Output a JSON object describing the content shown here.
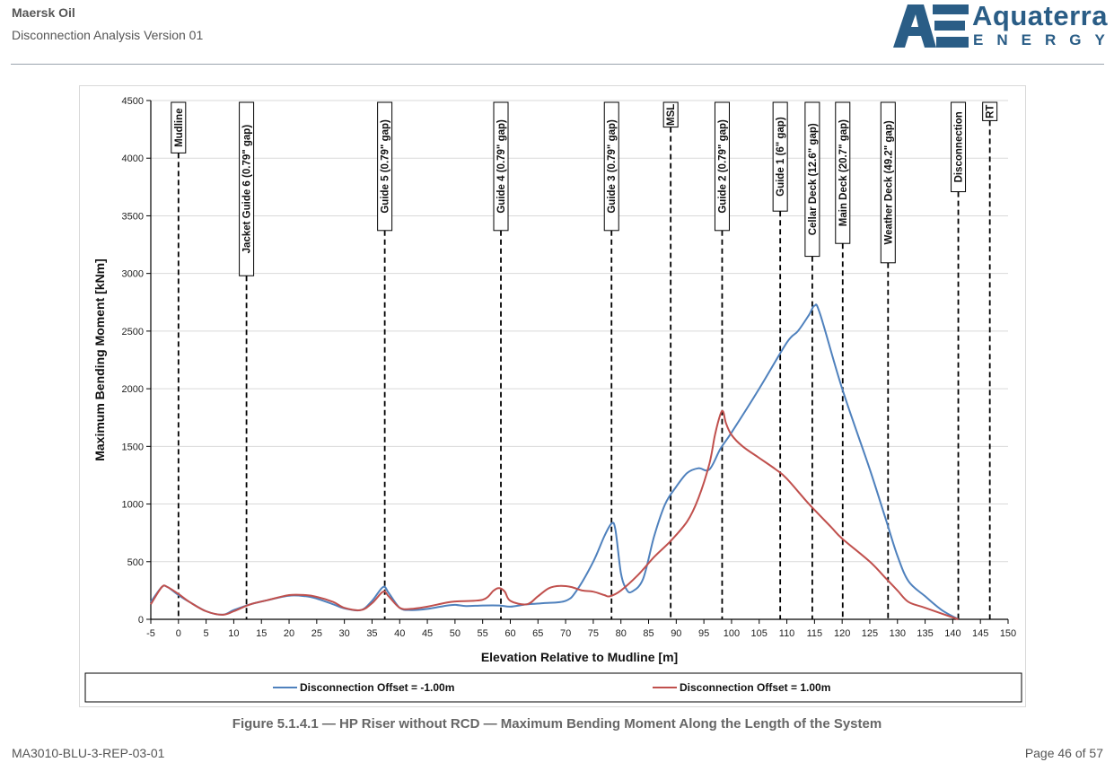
{
  "header": {
    "company": "Maersk Oil",
    "document_title": "Disconnection Analysis Version 01",
    "logo": {
      "word": "Aquaterra",
      "sub": "ENERGY",
      "mark": "AE"
    }
  },
  "caption": "Figure 5.1.4.1 — HP Riser without RCD — Maximum Bending Moment Along the Length of the System",
  "footer": {
    "doc_number": "MA3010-BLU-3-REP-03-01",
    "page": "Page 46 of 57"
  },
  "colors": {
    "series1": "#4f81bd",
    "series2": "#c0504d",
    "brand": "#2a5d86"
  },
  "chart_data": {
    "type": "line",
    "xlabel": "Elevation Relative to Mudline [m]",
    "ylabel": "Maximum Bending Moment [kNm]",
    "xlim": [
      -5,
      150
    ],
    "ylim": [
      0,
      4500
    ],
    "xticks": [
      -5,
      0,
      5,
      10,
      15,
      20,
      25,
      30,
      35,
      40,
      45,
      50,
      55,
      60,
      65,
      70,
      75,
      80,
      85,
      90,
      95,
      100,
      105,
      110,
      115,
      120,
      125,
      130,
      135,
      140,
      145,
      150
    ],
    "yticks": [
      0,
      500,
      1000,
      1500,
      2000,
      2500,
      3000,
      3500,
      4000,
      4500
    ],
    "grid": "horizontal",
    "legend_position": "bottom",
    "markers": [
      {
        "x": 0,
        "label": "Mudline"
      },
      {
        "x": 12.3,
        "label": "Jacket Guide 6 (0.79\" gap)"
      },
      {
        "x": 37.3,
        "label": "Guide 5 (0.79\" gap)"
      },
      {
        "x": 58.3,
        "label": "Guide 4 (0.79\" gap)"
      },
      {
        "x": 78.3,
        "label": "Guide 3 (0.79\" gap)"
      },
      {
        "x": 89,
        "label": "MSL"
      },
      {
        "x": 98.3,
        "label": "Guide 2 (0.79\" gap)"
      },
      {
        "x": 108.8,
        "label": "Guide 1 (6\" gap)"
      },
      {
        "x": 114.6,
        "label": "Cellar Deck (12.6\" gap)"
      },
      {
        "x": 120.1,
        "label": "Main Deck (20.7\" gap)"
      },
      {
        "x": 128.3,
        "label": "Weather Deck (49.2\" gap)"
      },
      {
        "x": 141,
        "label": "Disconnection"
      },
      {
        "x": 146.7,
        "label": "RT"
      }
    ],
    "series": [
      {
        "name": "Disconnection Offset = -1.00m",
        "x": [
          -5,
          -3,
          -2,
          0,
          2,
          5,
          8,
          10,
          13,
          16,
          20,
          23,
          25,
          28,
          30,
          33,
          35,
          37,
          38,
          40,
          42,
          45,
          48,
          50,
          52,
          55,
          58,
          60,
          63,
          66,
          70,
          72,
          75,
          77,
          78.3,
          79,
          80,
          81,
          82,
          84,
          86,
          88,
          90,
          92,
          94,
          96,
          98,
          100,
          105,
          110,
          112,
          114,
          115,
          116,
          120,
          125,
          128,
          130,
          132,
          135,
          138,
          141
        ],
        "y": [
          150,
          280,
          280,
          210,
          150,
          70,
          40,
          80,
          130,
          165,
          205,
          200,
          180,
          130,
          95,
          80,
          160,
          280,
          230,
          100,
          80,
          90,
          115,
          125,
          115,
          120,
          120,
          110,
          130,
          140,
          160,
          250,
          500,
          720,
          830,
          780,
          400,
          260,
          240,
          350,
          720,
          1000,
          1150,
          1270,
          1310,
          1300,
          1480,
          1620,
          2000,
          2400,
          2500,
          2640,
          2720,
          2650,
          2000,
          1300,
          850,
          550,
          330,
          200,
          80,
          0
        ]
      },
      {
        "name": "Disconnection Offset = 1.00m",
        "x": [
          -5,
          -3,
          -2,
          0,
          2,
          5,
          8,
          10,
          13,
          16,
          20,
          23,
          25,
          28,
          30,
          33,
          35,
          37,
          38,
          40,
          42,
          45,
          48,
          50,
          55,
          57,
          58,
          59,
          60,
          63,
          65,
          67,
          69,
          71,
          73,
          75,
          77,
          78,
          80,
          83,
          86,
          89,
          92,
          94,
          96,
          97,
          98,
          98.5,
          99,
          100,
          102,
          105,
          108,
          110,
          114,
          118,
          120,
          125,
          128,
          130,
          132,
          135,
          141
        ],
        "y": [
          130,
          280,
          280,
          220,
          150,
          70,
          40,
          70,
          130,
          165,
          210,
          210,
          195,
          150,
          100,
          80,
          140,
          240,
          200,
          100,
          90,
          110,
          140,
          155,
          170,
          250,
          270,
          240,
          160,
          130,
          200,
          270,
          290,
          280,
          250,
          240,
          210,
          200,
          250,
          380,
          540,
          680,
          850,
          1050,
          1350,
          1600,
          1780,
          1800,
          1700,
          1600,
          1500,
          1400,
          1300,
          1220,
          1000,
          800,
          700,
          500,
          350,
          250,
          150,
          100,
          0
        ]
      }
    ]
  }
}
